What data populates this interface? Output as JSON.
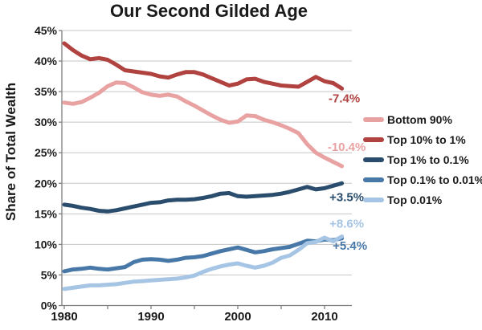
{
  "chart_data": {
    "type": "line",
    "title": "Our Second Gilded Age",
    "ylabel": "Share of Total Wealth",
    "x_start_year": 1980,
    "x_end_year": 2012,
    "x_tick_label_years": [
      1980,
      1990,
      2000,
      2010
    ],
    "x_tick_mark_years": [
      1980,
      1985,
      1990,
      1995,
      2000,
      2005,
      2010
    ],
    "y_ticks": [
      0,
      5,
      10,
      15,
      20,
      25,
      30,
      35,
      40,
      45
    ],
    "y_tick_labels": [
      "0%",
      "5%",
      "10%",
      "15%",
      "20%",
      "25%",
      "30%",
      "35%",
      "40%",
      "45%"
    ],
    "ylim": [
      0,
      45
    ],
    "grid": "horizontal-on",
    "legend_position": "right",
    "series": [
      {
        "name": "Bottom 90%",
        "color": "#E8A2A1",
        "change_label": "-10.4%",
        "values": [
          33.2,
          33.0,
          33.3,
          34.0,
          34.8,
          35.9,
          36.5,
          36.4,
          35.7,
          34.9,
          34.5,
          34.3,
          34.5,
          34.2,
          33.4,
          32.7,
          31.9,
          31.1,
          30.4,
          29.9,
          30.1,
          31.1,
          31.0,
          30.4,
          30.0,
          29.5,
          28.9,
          28.2,
          26.4,
          25.0,
          24.2,
          23.5,
          22.8
        ]
      },
      {
        "name": "Top 10% to 1%",
        "color": "#B04240",
        "change_label": "-7.4%",
        "values": [
          42.9,
          41.8,
          40.9,
          40.3,
          40.5,
          40.2,
          39.4,
          38.5,
          38.3,
          38.1,
          37.9,
          37.5,
          37.3,
          37.8,
          38.2,
          38.2,
          37.8,
          37.2,
          36.6,
          36.0,
          36.3,
          37.0,
          37.1,
          36.6,
          36.3,
          36.0,
          35.9,
          35.8,
          36.6,
          37.4,
          36.7,
          36.4,
          35.5
        ]
      },
      {
        "name": "Top 1% to 0.1%",
        "color": "#2A4D6D",
        "change_label": "+3.5%",
        "values": [
          16.5,
          16.3,
          16.0,
          15.8,
          15.5,
          15.4,
          15.6,
          15.9,
          16.2,
          16.5,
          16.8,
          16.9,
          17.2,
          17.3,
          17.3,
          17.4,
          17.6,
          17.9,
          18.3,
          18.4,
          17.9,
          17.8,
          17.9,
          18.0,
          18.1,
          18.3,
          18.6,
          19.0,
          19.4,
          19.0,
          19.2,
          19.6,
          20.0
        ]
      },
      {
        "name": "Top 0.1% to 0.01%",
        "color": "#4878A8",
        "change_label": "+5.4%",
        "values": [
          5.6,
          5.9,
          6.0,
          6.2,
          6.0,
          5.9,
          6.1,
          6.3,
          7.1,
          7.5,
          7.6,
          7.5,
          7.3,
          7.5,
          7.8,
          7.9,
          8.1,
          8.5,
          8.9,
          9.2,
          9.5,
          9.1,
          8.7,
          8.9,
          9.2,
          9.4,
          9.6,
          10.1,
          10.6,
          10.5,
          10.8,
          10.7,
          11.0
        ]
      },
      {
        "name": "Top 0.01%",
        "color": "#A6C5E5",
        "change_label": "+8.6%",
        "values": [
          2.7,
          2.9,
          3.1,
          3.3,
          3.3,
          3.4,
          3.5,
          3.7,
          3.9,
          4.0,
          4.1,
          4.2,
          4.3,
          4.4,
          4.6,
          4.9,
          5.5,
          6.0,
          6.4,
          6.7,
          6.9,
          6.5,
          6.2,
          6.5,
          7.0,
          7.8,
          8.2,
          9.1,
          10.2,
          10.4,
          11.1,
          10.5,
          11.3
        ]
      }
    ],
    "colors": {
      "gridline": "#C6C6C6",
      "axis": "#808080",
      "tick_text": "#1a1a1a"
    }
  }
}
